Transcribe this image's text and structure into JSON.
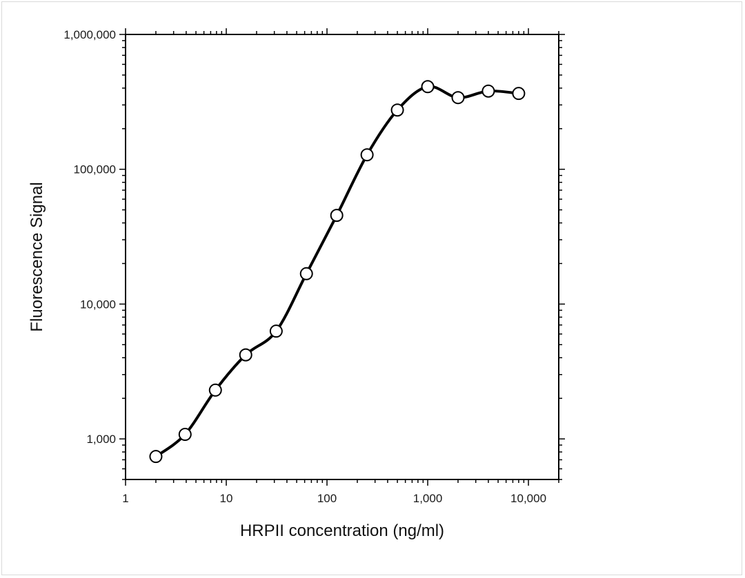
{
  "chart_data": {
    "type": "scatter",
    "title": "",
    "xlabel": "HRPII concentration (ng/ml)",
    "ylabel": "Fluorescence Signal",
    "xscale": "log",
    "yscale": "log",
    "xlim": [
      1,
      20000
    ],
    "ylim": [
      500,
      1000000
    ],
    "xticks": [
      {
        "value": 1,
        "label": "1"
      },
      {
        "value": 10,
        "label": "10"
      },
      {
        "value": 100,
        "label": "100"
      },
      {
        "value": 1000,
        "label": "1,000"
      },
      {
        "value": 10000,
        "label": "10,000"
      }
    ],
    "yticks": [
      {
        "value": 1000,
        "label": "1,000"
      },
      {
        "value": 10000,
        "label": "10,000"
      },
      {
        "value": 100000,
        "label": "100,000"
      },
      {
        "value": 1000000,
        "label": "1,000,000"
      }
    ],
    "grid": false,
    "legend": "none",
    "marker": "open-circle",
    "fit_line": "smooth",
    "series": [
      {
        "points": [
          {
            "x": 2,
            "y": 740
          },
          {
            "x": 3.9,
            "y": 1080
          },
          {
            "x": 7.8,
            "y": 2300
          },
          {
            "x": 15.6,
            "y": 4200
          },
          {
            "x": 31.3,
            "y": 6300
          },
          {
            "x": 62.5,
            "y": 16800
          },
          {
            "x": 125,
            "y": 45500
          },
          {
            "x": 250,
            "y": 128000
          },
          {
            "x": 500,
            "y": 275000
          },
          {
            "x": 1000,
            "y": 410000
          },
          {
            "x": 2000,
            "y": 340000
          },
          {
            "x": 4000,
            "y": 380000
          },
          {
            "x": 8000,
            "y": 365000
          }
        ]
      }
    ],
    "colors": {
      "line": "#000000",
      "marker_fill": "#ffffff",
      "marker_stroke": "#000000"
    }
  }
}
